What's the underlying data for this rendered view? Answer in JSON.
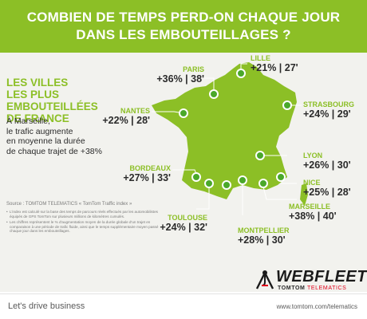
{
  "header": {
    "line1": "COMBIEN DE TEMPS PERD-ON CHAQUE JOUR",
    "line2": "DANS LES EMBOUTEILLAGES ?"
  },
  "subtitle": {
    "line1": "LES VILLES",
    "line2": "LES PLUS EMBOUTEILLÉES",
    "line3": "DE FRANCE"
  },
  "intro": {
    "line1": "À Marseille,",
    "line2": "le trafic augmente",
    "line3": "en moyenne la durée",
    "line4": "de chaque trajet de +38%"
  },
  "cities": {
    "paris": {
      "name": "PARIS",
      "value": "+36% | 38'"
    },
    "lille": {
      "name": "LILLE",
      "value": "+21% | 27'"
    },
    "nantes": {
      "name": "NANTES",
      "value": "+22% | 28'"
    },
    "strasbourg": {
      "name": "STRASBOURG",
      "value": "+24% | 29'"
    },
    "bordeaux": {
      "name": "BORDEAUX",
      "value": "+27% | 33'"
    },
    "lyon": {
      "name": "LYON",
      "value": "+26% | 30'"
    },
    "nice": {
      "name": "NICE",
      "value": "+25% | 28'"
    },
    "marseille": {
      "name": "MARSEILLE",
      "value": "+38% | 40'"
    },
    "toulouse": {
      "name": "TOULOUSE",
      "value": "+24% | 32'"
    },
    "montpellier": {
      "name": "MONTPELLIER",
      "value": "+28% | 30'"
    }
  },
  "notes": {
    "source": "Source : TOMTOM TELEMATICS « TomTom Traffic index »",
    "note1": "L'index est calculé sur la base des temps de parcours réels effectués par les automobilistes équipés de GPS TomTom sur plusieurs millions de kilomètres cumulés.",
    "note2": "Les chiffres représentent le % d'augmentation moyen de la durée globale d'un trajet en comparaison à une période de trafic fluide, ainsi que le temps supplémentaire moyen passé chaque jour dans les embouteillages."
  },
  "logo": {
    "wordmark": "WEBFLEET",
    "brand": "TOMTOM",
    "division": "TELEMATICS"
  },
  "footer": {
    "tagline": "Let's drive business",
    "url": "www.tomtom.com/telematics"
  },
  "colors": {
    "accent_green": "#8cbf26",
    "map_green": "#8cbf26",
    "dot_green": "#4aa82a",
    "text_dark": "#2b2b2b",
    "brand_red": "#e2001a"
  },
  "icons": {
    "logo_mark": "tow-truck-hook-icon",
    "city_marker": "white-ring-dot-icon"
  }
}
